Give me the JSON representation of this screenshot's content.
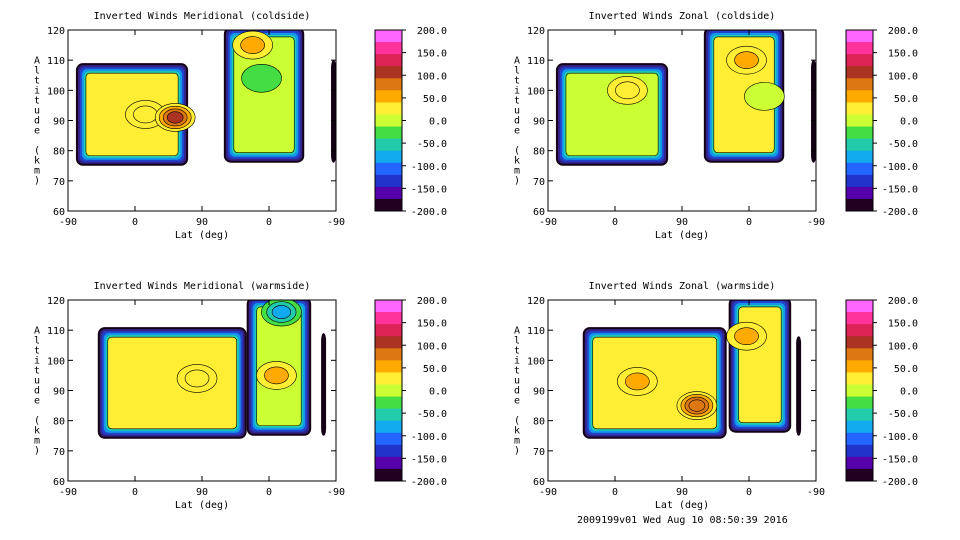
{
  "figure": {
    "footer": "2009199v01 Wed Aug 10 08:50:39 2016"
  },
  "colorbar": {
    "ticks": [
      "200.0",
      "150.0",
      "100.0",
      "50.0",
      "0.0",
      "-50.0",
      "-100.0",
      "-150.0",
      "-200.0"
    ],
    "colors": [
      "#ff66ff",
      "#ff3399",
      "#dd2255",
      "#aa3322",
      "#dd7711",
      "#ffaa00",
      "#ffee33",
      "#ccff33",
      "#44dd44",
      "#22ccaa",
      "#11aaee",
      "#2266ff",
      "#2233cc",
      "#5500aa",
      "#220022"
    ]
  },
  "chart_data": [
    {
      "type": "heatmap",
      "title": "Inverted Winds Meridional (coldside)",
      "xlabel": "Lat (deg)",
      "ylabel": "Altitude (km)",
      "xticks": [
        "-90",
        "0",
        "90",
        "0",
        "-90"
      ],
      "yticks": [
        "60",
        "70",
        "80",
        "90",
        "100",
        "110",
        "120"
      ],
      "ylim": [
        60,
        120
      ],
      "zlim": [
        -200,
        200
      ],
      "regions": [
        {
          "x": [
            -82,
            31
          ],
          "y": [
            75,
            109
          ],
          "value": 20
        },
        {
          "x": [
            67,
            148
          ],
          "y": [
            76,
            121
          ],
          "value": 0
        },
        {
          "x": [
            175,
            180
          ],
          "y": [
            76,
            110
          ],
          "value": -200
        }
      ],
      "features": [
        {
          "x": -12,
          "y": 92,
          "value": 40
        },
        {
          "x": 18,
          "y": 91,
          "value": 100
        },
        {
          "x": 96,
          "y": 115,
          "value": 50
        },
        {
          "x": 105,
          "y": 104,
          "value": -30
        }
      ]
    },
    {
      "type": "heatmap",
      "title": "Inverted Winds Zonal (coldside)",
      "xlabel": "Lat (deg)",
      "ylabel": "Altitude (km)",
      "xticks": [
        "-90",
        "0",
        "90",
        "0",
        "-90"
      ],
      "yticks": [
        "60",
        "70",
        "80",
        "90",
        "100",
        "110",
        "120"
      ],
      "ylim": [
        60,
        120
      ],
      "zlim": [
        -200,
        200
      ],
      "regions": [
        {
          "x": [
            -82,
            31
          ],
          "y": [
            75,
            109
          ],
          "value": 10
        },
        {
          "x": [
            67,
            148
          ],
          "y": [
            76,
            121
          ],
          "value": 20
        },
        {
          "x": [
            175,
            180
          ],
          "y": [
            76,
            110
          ],
          "value": -200
        }
      ],
      "features": [
        {
          "x": -10,
          "y": 100,
          "value": 40
        },
        {
          "x": 110,
          "y": 110,
          "value": 50
        },
        {
          "x": 128,
          "y": 98,
          "value": 10
        }
      ]
    },
    {
      "type": "heatmap",
      "title": "Inverted Winds Meridional (warmside)",
      "xlabel": "Lat (deg)",
      "ylabel": "Altitude (km)",
      "xticks": [
        "-90",
        "0",
        "90",
        "0",
        "-90"
      ],
      "yticks": [
        "60",
        "70",
        "80",
        "90",
        "100",
        "110",
        "120"
      ],
      "ylim": [
        60,
        120
      ],
      "zlim": [
        -200,
        200
      ],
      "regions": [
        {
          "x": [
            -60,
            90
          ],
          "y": [
            74,
            111
          ],
          "value": 20
        },
        {
          "x": [
            90,
            155
          ],
          "y": [
            75,
            121
          ],
          "value": 10
        },
        {
          "x": [
            165,
            170
          ],
          "y": [
            75,
            109
          ],
          "value": -200
        }
      ],
      "features": [
        {
          "x": 40,
          "y": 94,
          "value": 40
        },
        {
          "x": 120,
          "y": 95,
          "value": 45
        },
        {
          "x": 125,
          "y": 116,
          "value": -80
        }
      ]
    },
    {
      "type": "heatmap",
      "title": "Inverted Winds Zonal (warmside)",
      "xlabel": "Lat (deg)",
      "ylabel": "Altitude (km)",
      "xticks": [
        "-90",
        "0",
        "90",
        "0",
        "-90"
      ],
      "yticks": [
        "60",
        "70",
        "80",
        "90",
        "100",
        "110",
        "120"
      ],
      "ylim": [
        60,
        120
      ],
      "zlim": [
        -200,
        200
      ],
      "regions": [
        {
          "x": [
            -55,
            90
          ],
          "y": [
            74,
            111
          ],
          "value": 20
        },
        {
          "x": [
            92,
            155
          ],
          "y": [
            76,
            121
          ],
          "value": 25
        },
        {
          "x": [
            160,
            165
          ],
          "y": [
            75,
            108
          ],
          "value": -200
        }
      ],
      "features": [
        {
          "x": 0,
          "y": 93,
          "value": 55
        },
        {
          "x": 60,
          "y": 85,
          "value": 90
        },
        {
          "x": 110,
          "y": 108,
          "value": 50
        }
      ]
    }
  ]
}
